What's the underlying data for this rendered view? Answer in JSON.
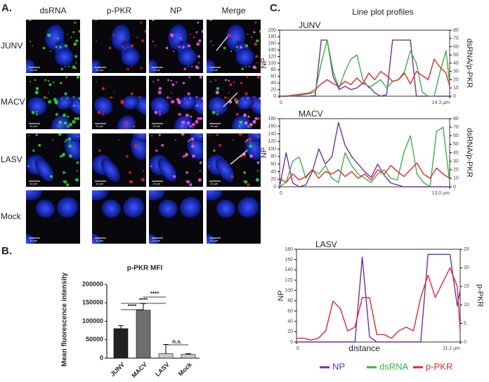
{
  "panel_labels": [
    "A.",
    "B.",
    "C."
  ],
  "microscopy": {
    "columns": [
      "dsRNA",
      "p-PKR",
      "NP",
      "Merge"
    ],
    "rows": [
      "JUNV",
      "MACV",
      "LASV",
      "Mock"
    ],
    "scale_bar": "10 µm"
  },
  "line_plot_title": "Line plot profiles",
  "chart_data": [
    {
      "type": "bar",
      "title": "p-PKR MFI",
      "ylabel": "Mean fluorescence intensity",
      "categories": [
        "JUNV",
        "MACV",
        "LASV",
        "Mock"
      ],
      "values": [
        80000,
        130000,
        12000,
        10000
      ],
      "errors": [
        8000,
        18000,
        25000,
        2000
      ],
      "colors": [
        "#222222",
        "#6e6e6e",
        "#c8c8c8",
        "#c8c8c8"
      ],
      "ylim": [
        0,
        200000
      ],
      "yticks": [
        0,
        50000,
        100000,
        150000,
        200000
      ],
      "significance": [
        "****",
        "****",
        "****",
        "n.s."
      ]
    },
    {
      "type": "line",
      "title": "JUNV",
      "ylabel": "NP",
      "y2label": "dsRNA/p-PKR",
      "x": [
        0,
        0.5,
        1,
        1.5,
        2,
        2.5,
        3,
        3.5,
        4,
        4.5,
        5,
        5.5,
        6,
        6.5,
        7,
        7.5,
        8,
        8.5,
        9,
        9.5,
        10,
        10.5,
        11,
        11.5,
        12,
        12.5,
        13,
        13.5,
        14,
        14.3
      ],
      "xlim": [
        0,
        14.3
      ],
      "xticks": [
        0,
        {
          "value": 14.3,
          "label": "14.3 µm"
        }
      ],
      "ylim": [
        0,
        200
      ],
      "yticks": [
        0,
        20,
        40,
        60,
        80,
        100,
        120,
        140,
        160,
        180,
        200
      ],
      "y2lim": [
        0,
        80
      ],
      "y2ticks": [
        0,
        10,
        20,
        30,
        40,
        50,
        60,
        70,
        80
      ],
      "series": [
        {
          "name": "NP",
          "color": "#7030a0",
          "values": [
            0,
            0,
            0,
            0,
            0,
            0,
            2,
            170,
            170,
            60,
            20,
            30,
            20,
            25,
            40,
            30,
            10,
            0,
            5,
            170,
            170,
            170,
            170,
            0,
            0,
            0,
            0,
            0,
            0,
            0
          ]
        },
        {
          "name": "dsRNA",
          "color": "#3fae49",
          "axis": "y2",
          "values": [
            0,
            0,
            0,
            1,
            2,
            3,
            5,
            40,
            68,
            30,
            10,
            30,
            45,
            50,
            20,
            10,
            15,
            20,
            10,
            18,
            20,
            30,
            55,
            40,
            5,
            0,
            0,
            30,
            55,
            15
          ]
        },
        {
          "name": "p-PKR",
          "color": "#e0282e",
          "axis": "y2",
          "values": [
            0,
            0,
            1,
            2,
            3,
            4,
            8,
            15,
            20,
            15,
            12,
            18,
            14,
            22,
            15,
            28,
            20,
            30,
            25,
            18,
            20,
            28,
            15,
            30,
            25,
            20,
            45,
            35,
            28,
            12
          ]
        }
      ]
    },
    {
      "type": "line",
      "title": "MACV",
      "ylabel": "NP",
      "y2label": "dsRNA/p-PKR",
      "x": [
        0,
        0.5,
        1,
        1.5,
        2,
        2.5,
        3,
        3.5,
        4,
        4.5,
        5,
        5.5,
        6,
        6.5,
        7,
        7.5,
        8,
        8.5,
        9,
        9.5,
        10,
        10.5,
        11,
        11.5,
        12,
        12.5,
        13
      ],
      "xlim": [
        0,
        13
      ],
      "xticks": [
        0,
        {
          "value": 13,
          "label": "13.0 µm"
        }
      ],
      "ylim": [
        0,
        180
      ],
      "yticks": [
        0,
        20,
        40,
        60,
        80,
        100,
        120,
        140,
        160,
        180
      ],
      "y2lim": [
        0,
        80
      ],
      "y2ticks": [
        0,
        10,
        20,
        30,
        40,
        50,
        60,
        70,
        80
      ],
      "series": [
        {
          "color": "#7030a0",
          "values": [
            0,
            90,
            10,
            0,
            5,
            40,
            100,
            60,
            80,
            170,
            110,
            80,
            60,
            40,
            25,
            60,
            30,
            10,
            5,
            0,
            0,
            0,
            0,
            0,
            0,
            0,
            0
          ]
        },
        {
          "color": "#3fae49",
          "axis": "y2",
          "values": [
            0,
            5,
            30,
            35,
            10,
            20,
            15,
            25,
            10,
            5,
            40,
            25,
            15,
            10,
            5,
            15,
            20,
            10,
            8,
            40,
            60,
            15,
            5,
            0,
            65,
            70,
            5
          ]
        },
        {
          "color": "#e0282e",
          "axis": "y2",
          "values": [
            10,
            5,
            15,
            8,
            12,
            20,
            10,
            18,
            15,
            20,
            12,
            18,
            10,
            15,
            8,
            20,
            15,
            25,
            18,
            12,
            20,
            28,
            15,
            10,
            22,
            15,
            10
          ]
        }
      ]
    },
    {
      "type": "line",
      "title": "LASV",
      "ylabel": "NP",
      "y2label": "p-PKR",
      "xlabel": "distance",
      "x": [
        0,
        0.5,
        1,
        1.5,
        2,
        2.5,
        3,
        3.5,
        4,
        4.5,
        5,
        5.5,
        6,
        6.5,
        7,
        7.5,
        8,
        8.5,
        9,
        9.5,
        10,
        10.5,
        11,
        11.2
      ],
      "xlim": [
        0,
        11.2
      ],
      "xticks": [
        0,
        {
          "value": 11.2,
          "label": "11.2 µm"
        }
      ],
      "ylim": [
        0,
        180
      ],
      "yticks": [
        0,
        20,
        40,
        60,
        80,
        100,
        120,
        140,
        160,
        180
      ],
      "y2lim": [
        0,
        25
      ],
      "y2ticks": [
        0,
        5,
        10,
        15,
        20,
        25
      ],
      "series": [
        {
          "color": "#7030a0",
          "values": [
            0,
            0,
            0,
            0,
            0,
            0,
            0,
            0,
            0,
            165,
            10,
            0,
            0,
            0,
            0,
            0,
            0,
            0,
            170,
            170,
            170,
            170,
            70,
            100
          ]
        },
        {
          "color": "#e0282e",
          "axis": "y2",
          "values": [
            1,
            1,
            0.5,
            1,
            3,
            11,
            9,
            3,
            4,
            12,
            12,
            2,
            2,
            1,
            3,
            4,
            3,
            12,
            18,
            12,
            16,
            20,
            15,
            3
          ]
        }
      ]
    }
  ]
}
